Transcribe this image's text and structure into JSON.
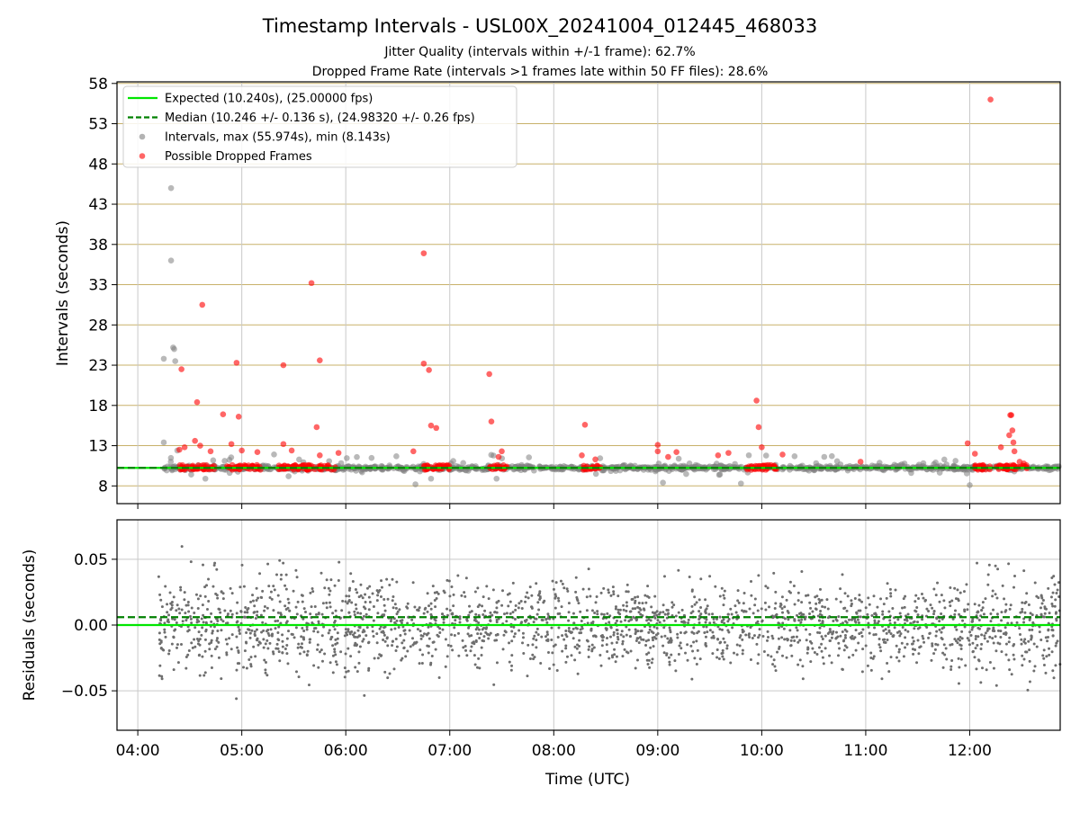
{
  "title": "Timestamp Intervals - USL00X_20241004_012445_468033",
  "subtitle_1": "Jitter Quality (intervals within +/-1 frame): 62.7%",
  "subtitle_2": "Dropped Frame Rate (intervals >1 frames late within 50 FF files): 28.6%",
  "chart_data": [
    {
      "type": "scatter",
      "panel": "top",
      "ylabel": "Intervals (seconds)",
      "xlim_hours": [
        3.8,
        12.87
      ],
      "ylim": [
        5.8,
        58.2
      ],
      "yticks": [
        8,
        13,
        18,
        23,
        28,
        33,
        38,
        43,
        48,
        53,
        58
      ],
      "ytick_labels": [
        "8",
        "13",
        "18",
        "23",
        "28",
        "33",
        "38",
        "43",
        "48",
        "53",
        "58"
      ],
      "grid": true,
      "legend_position": "top-left",
      "legend": [
        {
          "label": "Expected (10.240s), (25.00000 fps)",
          "style": "solid-line",
          "color": "#00e600"
        },
        {
          "label": "Median (10.246 +/- 0.136 s), (24.98320 +/- 0.26 fps)",
          "style": "dashed-line",
          "color": "#008000"
        },
        {
          "label": "Intervals, max (55.974s), min (8.143s)",
          "style": "marker",
          "color": "#808080"
        },
        {
          "label": "Possible Dropped Frames",
          "style": "marker",
          "color": "#ff0000"
        }
      ],
      "expected_line": 10.24,
      "median_line": 10.246,
      "series_intervals": {
        "color": "#808080",
        "baseline": 10.24,
        "spread": 0.5,
        "x_range_hours": [
          4.25,
          12.87
        ],
        "outliers": [
          {
            "x": 4.25,
            "y": 23.8
          },
          {
            "x": 4.25,
            "y": 13.4
          },
          {
            "x": 4.32,
            "y": 45.0
          },
          {
            "x": 4.32,
            "y": 36.0
          },
          {
            "x": 4.34,
            "y": 25.2
          },
          {
            "x": 4.35,
            "y": 25.0
          },
          {
            "x": 4.36,
            "y": 23.5
          },
          {
            "x": 4.38,
            "y": 12.4
          },
          {
            "x": 4.65,
            "y": 8.9
          },
          {
            "x": 5.45,
            "y": 9.2
          },
          {
            "x": 6.67,
            "y": 8.2
          },
          {
            "x": 6.82,
            "y": 8.9
          },
          {
            "x": 7.45,
            "y": 8.9
          },
          {
            "x": 9.05,
            "y": 8.4
          },
          {
            "x": 9.8,
            "y": 8.3
          },
          {
            "x": 12.0,
            "y": 8.1
          }
        ]
      },
      "series_dropped": {
        "color": "#ff0000",
        "points": [
          {
            "x": 4.4,
            "y": 12.5
          },
          {
            "x": 4.42,
            "y": 22.5
          },
          {
            "x": 4.45,
            "y": 12.8
          },
          {
            "x": 4.55,
            "y": 13.6
          },
          {
            "x": 4.57,
            "y": 18.4
          },
          {
            "x": 4.62,
            "y": 30.5
          },
          {
            "x": 4.6,
            "y": 13.0
          },
          {
            "x": 4.7,
            "y": 12.3
          },
          {
            "x": 4.82,
            "y": 16.9
          },
          {
            "x": 4.9,
            "y": 13.2
          },
          {
            "x": 4.95,
            "y": 23.3
          },
          {
            "x": 4.97,
            "y": 16.6
          },
          {
            "x": 5.0,
            "y": 12.4
          },
          {
            "x": 5.15,
            "y": 12.2
          },
          {
            "x": 5.4,
            "y": 23.0
          },
          {
            "x": 5.4,
            "y": 13.2
          },
          {
            "x": 5.48,
            "y": 12.4
          },
          {
            "x": 5.67,
            "y": 33.2
          },
          {
            "x": 5.72,
            "y": 15.3
          },
          {
            "x": 5.75,
            "y": 23.6
          },
          {
            "x": 5.75,
            "y": 11.8
          },
          {
            "x": 5.93,
            "y": 12.1
          },
          {
            "x": 6.65,
            "y": 12.3
          },
          {
            "x": 6.75,
            "y": 36.9
          },
          {
            "x": 6.75,
            "y": 23.2
          },
          {
            "x": 6.8,
            "y": 22.4
          },
          {
            "x": 6.82,
            "y": 15.5
          },
          {
            "x": 6.87,
            "y": 15.2
          },
          {
            "x": 7.38,
            "y": 21.9
          },
          {
            "x": 7.4,
            "y": 16.0
          },
          {
            "x": 7.47,
            "y": 11.6
          },
          {
            "x": 7.5,
            "y": 12.3
          },
          {
            "x": 8.3,
            "y": 15.6
          },
          {
            "x": 8.27,
            "y": 11.8
          },
          {
            "x": 8.4,
            "y": 11.3
          },
          {
            "x": 9.0,
            "y": 13.1
          },
          {
            "x": 9.0,
            "y": 12.3
          },
          {
            "x": 9.1,
            "y": 11.6
          },
          {
            "x": 9.18,
            "y": 12.2
          },
          {
            "x": 9.58,
            "y": 11.8
          },
          {
            "x": 9.68,
            "y": 12.1
          },
          {
            "x": 9.95,
            "y": 18.6
          },
          {
            "x": 9.97,
            "y": 15.3
          },
          {
            "x": 10.0,
            "y": 12.8
          },
          {
            "x": 10.2,
            "y": 11.9
          },
          {
            "x": 10.95,
            "y": 11.0
          },
          {
            "x": 11.98,
            "y": 13.3
          },
          {
            "x": 12.05,
            "y": 12.0
          },
          {
            "x": 12.2,
            "y": 56.0
          },
          {
            "x": 12.3,
            "y": 12.8
          },
          {
            "x": 12.38,
            "y": 14.3
          },
          {
            "x": 12.39,
            "y": 16.8
          },
          {
            "x": 12.4,
            "y": 16.8
          },
          {
            "x": 12.41,
            "y": 14.9
          },
          {
            "x": 12.42,
            "y": 13.4
          },
          {
            "x": 12.43,
            "y": 12.3
          },
          {
            "x": 12.48,
            "y": 11.0
          },
          {
            "x": 12.52,
            "y": 10.8
          }
        ],
        "clusters": [
          {
            "x_start": 4.4,
            "x_end": 4.75,
            "y": 10.24
          },
          {
            "x_start": 4.85,
            "x_end": 5.2,
            "y": 10.24
          },
          {
            "x_start": 5.35,
            "x_end": 5.9,
            "y": 10.24
          },
          {
            "x_start": 6.75,
            "x_end": 7.02,
            "y": 10.24
          },
          {
            "x_start": 7.38,
            "x_end": 7.55,
            "y": 10.24
          },
          {
            "x_start": 8.28,
            "x_end": 8.45,
            "y": 10.24
          },
          {
            "x_start": 9.85,
            "x_end": 10.15,
            "y": 10.24
          },
          {
            "x_start": 12.05,
            "x_end": 12.55,
            "y": 10.24
          }
        ]
      }
    },
    {
      "type": "scatter",
      "panel": "bottom",
      "xlabel": "Time (UTC)",
      "ylabel": "Residuals (seconds)",
      "xlim_hours": [
        3.8,
        12.87
      ],
      "ylim": [
        -0.08,
        0.08
      ],
      "yticks": [
        -0.05,
        0.0,
        0.05
      ],
      "ytick_labels": [
        "−0.05",
        "0.00",
        "0.05"
      ],
      "xticks_hours": [
        4,
        5,
        6,
        7,
        8,
        9,
        10,
        11,
        12
      ],
      "xtick_labels": [
        "04:00",
        "05:00",
        "06:00",
        "07:00",
        "08:00",
        "09:00",
        "10:00",
        "11:00",
        "12:00"
      ],
      "grid": true,
      "expected_line": 0.0,
      "median_line": 0.006,
      "series_residuals": {
        "color": "#6e6e6e",
        "x_range_hours": [
          4.2,
          12.87
        ],
        "y_range": [
          -0.08,
          0.08
        ]
      }
    }
  ]
}
